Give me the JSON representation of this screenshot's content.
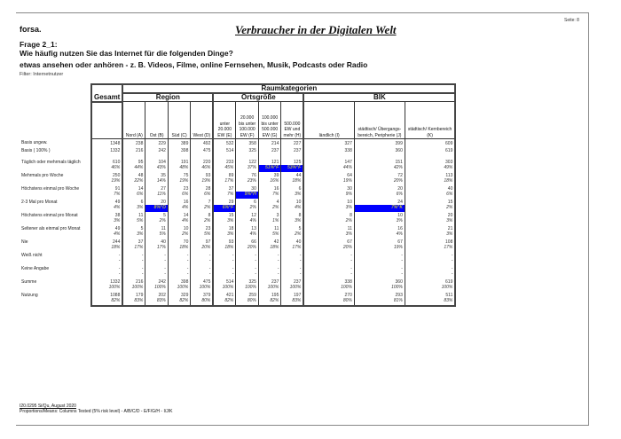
{
  "header": {
    "brand": "forsa.",
    "title": "Verbraucher in der Digitalen Welt",
    "page": "Seite: 8"
  },
  "question": {
    "id": "Frage 2_1:",
    "text": "Wie häufig nutzen Sie das Internet für die folgenden Dinge?",
    "item": "etwas ansehen oder anhören - z. B. Videos, Filme, online Fernsehen, Musik, Podcasts oder Radio",
    "filter": "Filter: Internetnutzer"
  },
  "table": {
    "top_header": "Raumkategorien",
    "gesamt": "Gesamt",
    "groups": [
      "Region",
      "Ortsgröße",
      "BIK"
    ],
    "columns": [
      "Nord (A)",
      "Ost (B)",
      "Süd (C)",
      "West (D)",
      "unter 20.000 EW (E)",
      "20.000 bis unter 100.000 EW (F)",
      "100.000 bis unter 500.000 EW (G)",
      "500.000 EW und mehr (H)",
      "ländlich (I)",
      "städtisch/ Übergangs-bereich, Peripherie (J)",
      "städtisch/ Kernbereich (K)"
    ],
    "basis": [
      {
        "label": "Basis ungew.",
        "values": [
          "1348",
          "238",
          "229",
          "389",
          "492",
          "532",
          "358",
          "214",
          "227",
          "327",
          "399",
          "609"
        ]
      },
      {
        "label": "Basis ( 100% )",
        "values": [
          "1332",
          "216",
          "242",
          "398",
          "475",
          "514",
          "325",
          "237",
          "237",
          "338",
          "360",
          "619"
        ]
      }
    ],
    "rows": [
      {
        "label": "Täglich oder mehrmals täglich",
        "counts": [
          "610",
          "95",
          "104",
          "191",
          "220",
          "233",
          "122",
          "121",
          "125",
          "147",
          "151",
          "303"
        ],
        "pcts": [
          "46%",
          "44%",
          "43%",
          "48%",
          "46%",
          "45%",
          "37%",
          "51%^F",
          "53%^F",
          "44%",
          "42%",
          "49%"
        ]
      },
      {
        "label": "Mehrmals pro Woche",
        "counts": [
          "250",
          "48",
          "35",
          "75",
          "93",
          "89",
          "76",
          "39",
          "44",
          "64",
          "72",
          "113"
        ],
        "pcts": [
          "19%",
          "22%",
          "14%",
          "19%",
          "19%",
          "17%",
          "23%",
          "16%",
          "18%",
          "19%",
          "20%",
          "18%"
        ]
      },
      {
        "label": "Höchstens einmal pro Woche",
        "counts": [
          "91",
          "14",
          "27",
          "23",
          "28",
          "37",
          "30",
          "16",
          "6",
          "30",
          "20",
          "40"
        ],
        "pcts": [
          "7%",
          "6%",
          "11%",
          "6%",
          "6%",
          "7%",
          "9%^H",
          "7%",
          "3%",
          "9%",
          "6%",
          "6%"
        ]
      },
      {
        "label": "2-3 Mal pro Monat",
        "counts": [
          "49",
          "6",
          "20",
          "16",
          "7",
          "29",
          "6",
          "4",
          "10",
          "10",
          "24",
          "15"
        ],
        "pcts": [
          "4%",
          "3%",
          "8%^D",
          "4%",
          "2%",
          "6%^F",
          "2%",
          "2%",
          "4%",
          "3%",
          "7%^K",
          "2%"
        ]
      },
      {
        "label": "Höchstens einmal pro Monat",
        "counts": [
          "38",
          "11",
          "5",
          "14",
          "8",
          "15",
          "12",
          "3",
          "8",
          "8",
          "10",
          "20"
        ],
        "pcts": [
          "3%",
          "5%",
          "2%",
          "4%",
          "2%",
          "3%",
          "4%",
          "1%",
          "3%",
          "2%",
          "3%",
          "3%"
        ]
      },
      {
        "label": "Seltener als einmal pro Monat",
        "counts": [
          "49",
          "5",
          "11",
          "10",
          "23",
          "18",
          "13",
          "11",
          "5",
          "11",
          "16",
          "21"
        ],
        "pcts": [
          "4%",
          "3%",
          "5%",
          "2%",
          "5%",
          "3%",
          "4%",
          "5%",
          "2%",
          "3%",
          "4%",
          "3%"
        ]
      },
      {
        "label": "Nie",
        "counts": [
          "244",
          "37",
          "40",
          "70",
          "97",
          "93",
          "66",
          "42",
          "40",
          "67",
          "67",
          "108"
        ],
        "pcts": [
          "18%",
          "17%",
          "17%",
          "18%",
          "20%",
          "18%",
          "20%",
          "18%",
          "17%",
          "20%",
          "19%",
          "17%"
        ]
      },
      {
        "label": "Weiß nicht",
        "counts": [
          "-",
          "-",
          "-",
          "-",
          "-",
          "-",
          "-",
          "-",
          "-",
          "-",
          "-",
          "-"
        ],
        "pcts": [
          "-",
          "-",
          "-",
          "-",
          "-",
          "-",
          "-",
          "-",
          "-",
          "-",
          "-",
          "-"
        ]
      },
      {
        "label": "Keine Angabe",
        "counts": [
          "-",
          "-",
          "-",
          "-",
          "-",
          "-",
          "-",
          "-",
          "-",
          "-",
          "-",
          "-"
        ],
        "pcts": [
          "-",
          "-",
          "-",
          "-",
          "-",
          "-",
          "-",
          "-",
          "-",
          "-",
          "-",
          "-"
        ]
      },
      {
        "label": "Summe",
        "counts": [
          "1332",
          "216",
          "242",
          "398",
          "475",
          "514",
          "325",
          "237",
          "237",
          "338",
          "360",
          "619"
        ],
        "pcts": [
          "100%",
          "100%",
          "100%",
          "100%",
          "100%",
          "100%",
          "100%",
          "100%",
          "100%",
          "100%",
          "100%",
          "100%"
        ]
      },
      {
        "label": "Nutzung",
        "counts": [
          "1088",
          "179",
          "202",
          "329",
          "379",
          "421",
          "259",
          "195",
          "197",
          "270",
          "293",
          "511"
        ],
        "pcts": [
          "82%",
          "83%",
          "83%",
          "82%",
          "80%",
          "82%",
          "80%",
          "82%",
          "83%",
          "80%",
          "81%",
          "83%"
        ]
      }
    ]
  },
  "footer": {
    "line1": "I20.0295 Si/Qu, August 2020",
    "line2": "Proportions/Means: Columns Tested (5% risk level) - A/B/C/D - E/F/G/H - I/J/K"
  },
  "colors": {
    "highlight_bg": "#0000ff",
    "highlight_text": "#ffff00"
  }
}
